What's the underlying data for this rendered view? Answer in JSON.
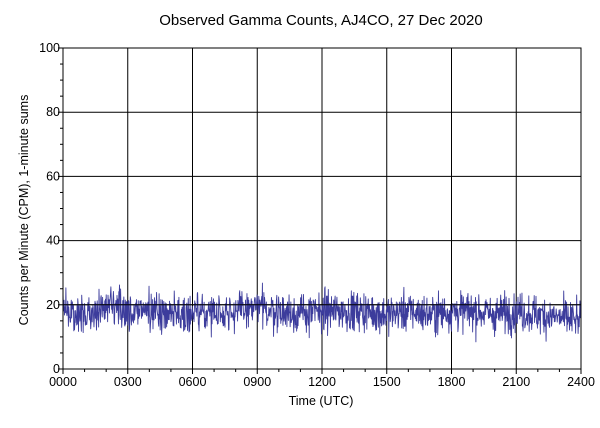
{
  "chart_data": {
    "type": "line",
    "title": "Observed Gamma Counts, AJ4CO, 27 Dec 2020",
    "xlabel": "Time (UTC)",
    "ylabel": "Counts per Minute (CPM), 1-minute sums",
    "xlim": [
      0,
      24
    ],
    "ylim": [
      0,
      100
    ],
    "x_ticks": [
      0,
      3,
      6,
      9,
      12,
      15,
      18,
      21,
      24
    ],
    "x_tick_labels": [
      "0000",
      "0300",
      "0600",
      "0900",
      "1200",
      "1500",
      "1800",
      "2100",
      "2400"
    ],
    "y_ticks": [
      0,
      20,
      40,
      60,
      80,
      100
    ],
    "y_tick_labels": [
      "0",
      "20",
      "40",
      "60",
      "80",
      "100"
    ],
    "grid": true,
    "reference_line": 20,
    "series": [
      {
        "color": "#3c3c9c",
        "sampling": "1-minute sums",
        "points": 1440,
        "mean": 18,
        "typical_range": [
          9,
          29
        ],
        "x": [
          0,
          1,
          2,
          3,
          4,
          5,
          6,
          7,
          8,
          9,
          10,
          11,
          12,
          13,
          14,
          15,
          16,
          17,
          18,
          19,
          20,
          21,
          22,
          23,
          24
        ],
        "values": [
          18,
          17,
          19,
          18,
          18,
          18,
          17,
          18,
          18,
          19,
          18,
          17,
          18,
          18,
          18,
          17,
          18,
          17,
          18,
          18,
          17,
          18,
          17,
          16,
          15
        ]
      }
    ]
  }
}
